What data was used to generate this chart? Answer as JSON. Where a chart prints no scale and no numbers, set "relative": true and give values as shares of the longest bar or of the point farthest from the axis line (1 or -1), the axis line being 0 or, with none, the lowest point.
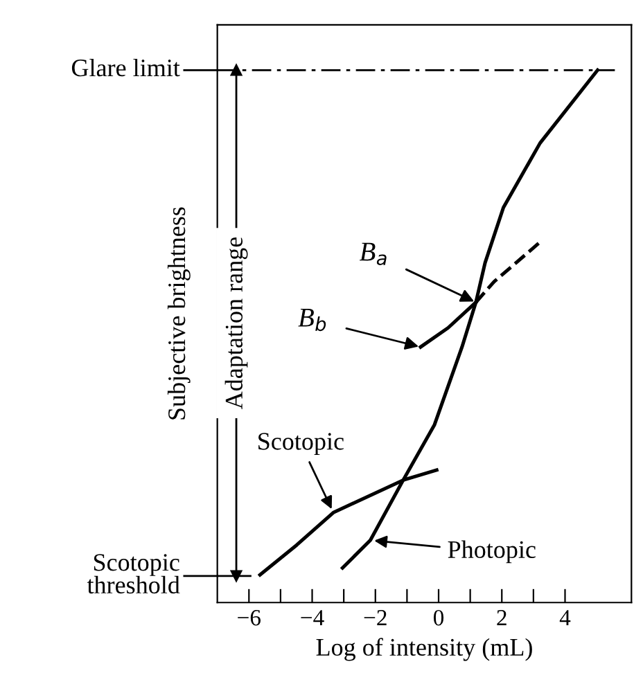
{
  "chart_data": {
    "type": "line",
    "xlabel": "Log of intensity (mL)",
    "ylabel": "Subjective brightness",
    "relative": true,
    "xlim": [
      -7,
      6.1
    ],
    "xticks": [
      {
        "value": -6,
        "label": "−6"
      },
      {
        "value": -5,
        "label": null
      },
      {
        "value": -4,
        "label": "−4"
      },
      {
        "value": -3,
        "label": null
      },
      {
        "value": -2,
        "label": "−2"
      },
      {
        "value": -1,
        "label": null
      },
      0,
      {
        "value": 1,
        "label": null
      },
      2,
      {
        "value": 3,
        "label": null
      },
      4
    ],
    "grid": false,
    "legend": false,
    "marker": "none",
    "series": [
      {
        "name": "Photopic",
        "color": "#000000",
        "line_style": "solid",
        "x": [
          -3.04,
          -2.16,
          -1.12,
          -0.13,
          0.74,
          1.18,
          1.47,
          2.05,
          3.21,
          5.03
        ],
        "values": [
          0.065,
          0.117,
          0.23,
          0.334,
          0.48,
          0.564,
          0.638,
          0.742,
          0.863,
          1.0
        ]
      },
      {
        "name": "Scotopic",
        "color": "#000000",
        "line_style": "solid",
        "x": [
          -5.65,
          -4.49,
          -3.33,
          -1.12,
          -0.06
        ],
        "values": [
          0.052,
          0.108,
          0.169,
          0.23,
          0.249
        ]
      },
      {
        "color": "#000000",
        "line_style": "solid",
        "x": [
          -0.57,
          0.3,
          1.18
        ],
        "values": [
          0.48,
          0.516,
          0.564
        ]
      },
      {
        "color": "#000000",
        "line_style": "dashed",
        "x": [
          1.18,
          1.76,
          3.21
        ],
        "values": [
          0.564,
          0.603,
          0.677
        ]
      },
      {
        "name": "Adaptation range",
        "color": "#000000",
        "line_style": "solid",
        "marker": "triangle",
        "x": [
          -6.4,
          -6.4
        ],
        "values": [
          0.05,
          1.0
        ]
      }
    ],
    "ref_lines": [
      {
        "axis": "y",
        "value": 1.0,
        "label": "Glare limit",
        "line_style": "dashdot"
      },
      {
        "axis": "y",
        "value": 0.05,
        "label": "Scotopic\nthreshold",
        "line_style": "solid"
      }
    ],
    "annotations": [
      {
        "text": "B$_{a}$",
        "x": 1.18,
        "y": 0.564
      },
      {
        "text": "B$_{b}$",
        "x": -0.57,
        "y": 0.48
      }
    ]
  }
}
